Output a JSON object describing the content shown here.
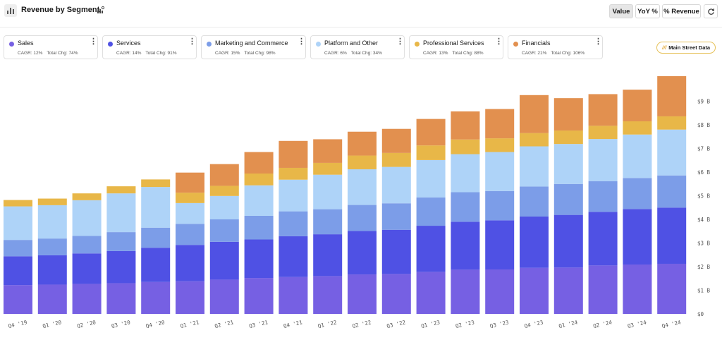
{
  "header": {
    "title": "Revenue by Segment",
    "toggles": [
      "Value",
      "YoY %",
      "% Revenue"
    ],
    "active_toggle": "Value"
  },
  "badge": {
    "label": "Main Street Data"
  },
  "segments": [
    {
      "name": "Sales",
      "cagr": "CAGR: 12%",
      "total_chg": "Total Chg: 74%",
      "color": "#7660e3"
    },
    {
      "name": "Services",
      "cagr": "CAGR: 14%",
      "total_chg": "Total Chg: 91%",
      "color": "#4f51e4"
    },
    {
      "name": "Marketing and Commerce",
      "cagr": "CAGR: 15%",
      "total_chg": "Total Chg: 98%",
      "color": "#7c9de8"
    },
    {
      "name": "Platform and Other",
      "cagr": "CAGR: 6%",
      "total_chg": "Total Chg: 34%",
      "color": "#aed3f8"
    },
    {
      "name": "Professional Services",
      "cagr": "CAGR: 13%",
      "total_chg": "Total Chg: 88%",
      "color": "#e8b748"
    },
    {
      "name": "Financials",
      "cagr": "CAGR: 21%",
      "total_chg": "Total Chg: 106%",
      "color": "#e2904f"
    }
  ],
  "chart_data": {
    "type": "bar",
    "stacked": true,
    "title": "Revenue by Segment",
    "categories": [
      "Q4 '19",
      "Q1 '20",
      "Q2 '20",
      "Q3 '20",
      "Q4 '20",
      "Q1 '21",
      "Q2 '21",
      "Q3 '21",
      "Q4 '21",
      "Q1 '22",
      "Q2 '22",
      "Q3 '22",
      "Q1 '23",
      "Q2 '23",
      "Q3 '23",
      "Q4 '23",
      "Q1 '24",
      "Q2 '24",
      "Q3 '24",
      "Q4 '24"
    ],
    "ylim": [
      0,
      10
    ],
    "yticks": [
      0,
      1,
      2,
      3,
      4,
      5,
      6,
      7,
      8,
      9
    ],
    "ytick_labels": [
      "$0",
      "$1 B",
      "$2 B",
      "$3 B",
      "$4 B",
      "$5 B",
      "$6 B",
      "$7 B",
      "$8 B",
      "$9 B"
    ],
    "axis_position": "right",
    "series": [
      {
        "name": "Sales",
        "values": [
          1.22,
          1.24,
          1.27,
          1.3,
          1.35,
          1.38,
          1.45,
          1.52,
          1.56,
          1.6,
          1.67,
          1.69,
          1.78,
          1.87,
          1.88,
          1.95,
          1.96,
          2.05,
          2.09,
          2.12
        ]
      },
      {
        "name": "Services",
        "values": [
          1.22,
          1.24,
          1.29,
          1.36,
          1.45,
          1.54,
          1.6,
          1.63,
          1.73,
          1.77,
          1.84,
          1.87,
          1.95,
          2.03,
          2.08,
          2.17,
          2.23,
          2.27,
          2.35,
          2.38
        ]
      },
      {
        "name": "Marketing and Commerce",
        "values": [
          0.69,
          0.71,
          0.74,
          0.8,
          0.85,
          0.89,
          0.95,
          1.0,
          1.05,
          1.06,
          1.1,
          1.12,
          1.2,
          1.25,
          1.24,
          1.27,
          1.31,
          1.3,
          1.31,
          1.36
        ]
      },
      {
        "name": "Platform and Other",
        "values": [
          1.42,
          1.41,
          1.51,
          1.64,
          1.72,
          0.88,
          0.99,
          1.29,
          1.34,
          1.46,
          1.51,
          1.54,
          1.58,
          1.61,
          1.65,
          1.7,
          1.69,
          1.78,
          1.84,
          1.94
        ]
      },
      {
        "name": "Professional Services",
        "values": [
          0.27,
          0.28,
          0.29,
          0.3,
          0.32,
          0.44,
          0.43,
          0.5,
          0.5,
          0.5,
          0.58,
          0.59,
          0.62,
          0.62,
          0.58,
          0.56,
          0.57,
          0.56,
          0.56,
          0.56
        ]
      },
      {
        "name": "Financials",
        "values": [
          0.0,
          0.0,
          0.0,
          0.0,
          0.0,
          0.85,
          0.92,
          0.91,
          1.14,
          1.0,
          1.01,
          1.02,
          1.12,
          1.19,
          1.24,
          1.61,
          1.37,
          1.34,
          1.34,
          1.7
        ]
      }
    ]
  }
}
